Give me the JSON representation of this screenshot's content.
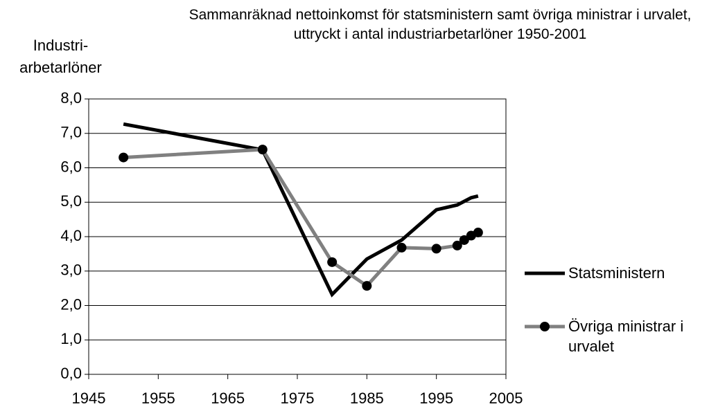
{
  "chart_data": {
    "type": "line",
    "title": "Sammanräknad nettoinkomst för statsministern samt övriga ministrar i urvalet, uttryckt i antal industriarbetarlöner 1950-2001",
    "y_label": "Industri-arbetarlöner",
    "series": [
      {
        "name": "Statsministern",
        "color": "#000000",
        "marker": false,
        "x": [
          1950,
          1970,
          1980,
          1985,
          1990,
          1995,
          1998,
          2000,
          2001
        ],
        "values": [
          7.27,
          6.52,
          2.32,
          3.35,
          3.9,
          4.78,
          4.92,
          5.13,
          5.18
        ]
      },
      {
        "name": "Övriga ministrar i urvalet",
        "color": "#808080",
        "marker": true,
        "x": [
          1950,
          1970,
          1980,
          1985,
          1990,
          1995,
          1998,
          1999,
          2000,
          2001
        ],
        "values": [
          6.3,
          6.53,
          3.26,
          2.57,
          3.68,
          3.65,
          3.74,
          3.9,
          4.03,
          4.12
        ]
      }
    ],
    "xlim": [
      1945,
      2005
    ],
    "xticks": [
      1945,
      1955,
      1965,
      1975,
      1985,
      1995,
      2005
    ],
    "ylim": [
      0,
      8
    ],
    "yticks": [
      {
        "value": 0,
        "label": "0,0"
      },
      {
        "value": 1,
        "label": "1,0"
      },
      {
        "value": 2,
        "label": "2,0"
      },
      {
        "value": 3,
        "label": "3,0"
      },
      {
        "value": 4,
        "label": "4,0"
      },
      {
        "value": 5,
        "label": "5,0"
      },
      {
        "value": 6,
        "label": "6,0"
      },
      {
        "value": 7,
        "label": "7,0"
      },
      {
        "value": 8,
        "label": "8,0"
      }
    ],
    "grid": true
  }
}
